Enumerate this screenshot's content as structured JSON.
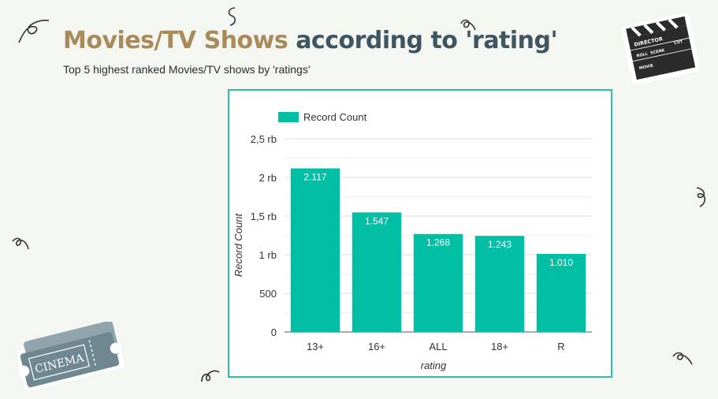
{
  "header": {
    "title_part1": "Movies/TV Shows",
    "title_part2": "according to 'rating'",
    "subtitle": "Top 5 highest ranked Movies/TV shows by 'ratings'"
  },
  "decor": {
    "clapper_labels": [
      "DIRECTOR",
      "ROLL",
      "SCENE",
      "CUT",
      "MOVIE"
    ],
    "ticket_label": "CINEMA"
  },
  "colors": {
    "bar": "#00bfa5",
    "title_accent": "#a98a5a",
    "title_dark": "#3f5560",
    "frame": "#2bbfa8"
  },
  "chart_data": {
    "type": "bar",
    "categories": [
      "13+",
      "16+",
      "ALL",
      "18+",
      "R"
    ],
    "series": [
      {
        "name": "Record Count",
        "values": [
          2117,
          1547,
          1268,
          1243,
          1010
        ]
      }
    ],
    "data_labels": [
      "2.117",
      "1.547",
      "1.268",
      "1.243",
      "1.010"
    ],
    "xlabel": "rating",
    "ylabel": "Record Count",
    "ylim": [
      0,
      2500
    ],
    "yticks": [
      0,
      500,
      1000,
      1500,
      2000,
      2500
    ],
    "ytick_labels": [
      "0",
      "500",
      "1 rb",
      "1,5 rb",
      "2 rb",
      "2,5 rb"
    ],
    "grid": true,
    "legend_position": "top-left"
  }
}
